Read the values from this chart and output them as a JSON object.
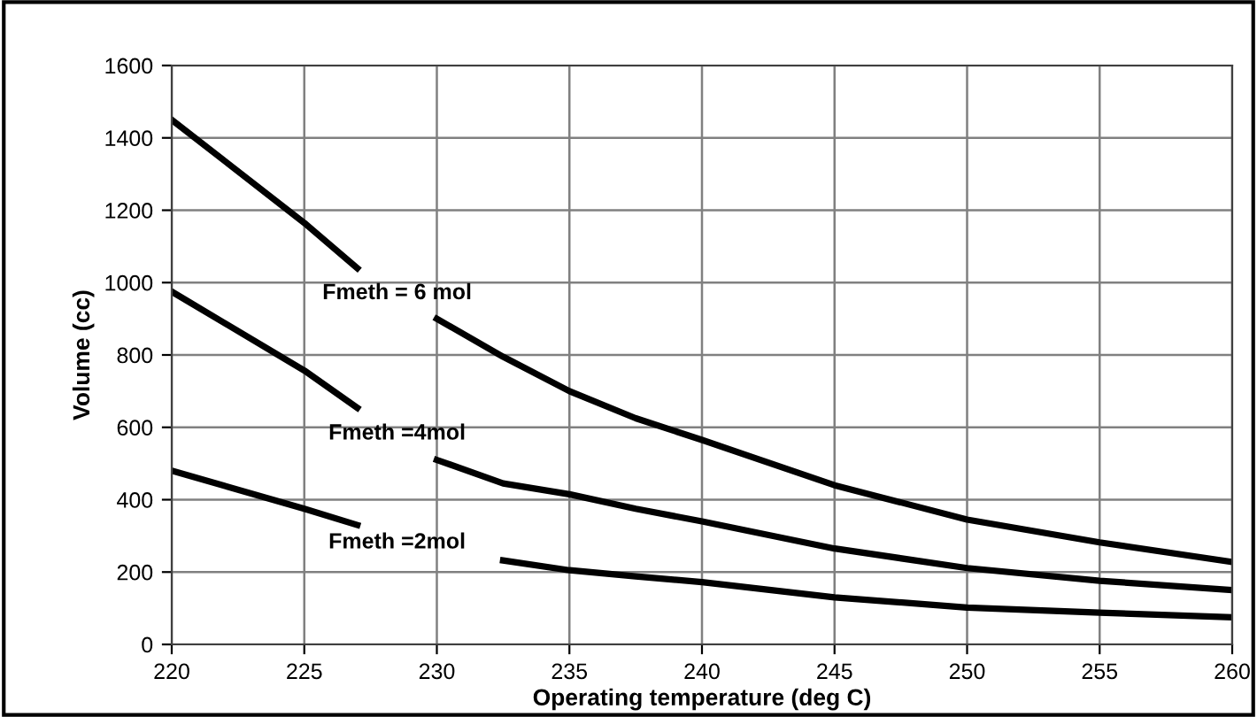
{
  "chart_data": {
    "type": "line",
    "xlabel": "Operating temperature (deg C)",
    "ylabel": "Volume (cc)",
    "x": [
      220,
      225,
      227,
      228.5,
      230,
      232.5,
      235,
      237.5,
      240,
      245,
      250,
      255,
      260
    ],
    "series": [
      {
        "color": "#000000",
        "values": [
          1450,
          1165,
          1040,
          null,
          900,
          795,
          700,
          625,
          565,
          440,
          345,
          282,
          228
        ]
      },
      {
        "color": "#000000",
        "values": [
          975,
          757,
          654,
          null,
          510,
          445,
          415,
          375,
          340,
          265,
          211,
          176,
          150
        ]
      },
      {
        "color": "#000000",
        "values": [
          480,
          375,
          330,
          null,
          null,
          232,
          205,
          188,
          172,
          130,
          102,
          88,
          75
        ]
      }
    ],
    "xlim": [
      220,
      260
    ],
    "xticks": [
      220,
      225,
      230,
      235,
      240,
      245,
      250,
      255,
      260
    ],
    "ylim": [
      0,
      1600
    ],
    "yticks": [
      0,
      200,
      400,
      600,
      800,
      1000,
      1200,
      1400,
      1600
    ],
    "grid": true,
    "legend": false,
    "marker": "none",
    "line_style": "solid",
    "annotations": [
      "Fmeth = 6 mol",
      "Fmeth =4mol",
      "Fmeth =2mol"
    ]
  }
}
